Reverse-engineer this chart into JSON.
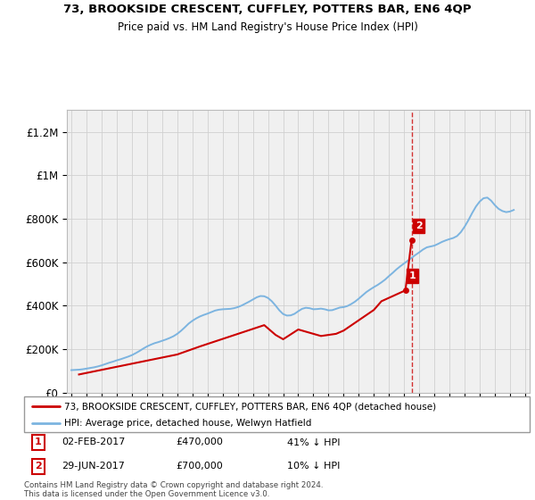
{
  "title": "73, BROOKSIDE CRESCENT, CUFFLEY, POTTERS BAR, EN6 4QP",
  "subtitle": "Price paid vs. HM Land Registry's House Price Index (HPI)",
  "ylim": [
    0,
    1300000
  ],
  "yticks": [
    0,
    200000,
    400000,
    600000,
    800000,
    1000000,
    1200000
  ],
  "ytick_labels": [
    "£0",
    "£200K",
    "£400K",
    "£600K",
    "£800K",
    "£1M",
    "£1.2M"
  ],
  "hpi_color": "#7cb4e0",
  "price_color": "#cc0000",
  "vline_color": "#cc0000",
  "annotation_box_color": "#cc0000",
  "background_color": "#f0f0f0",
  "legend_label_price": "73, BROOKSIDE CRESCENT, CUFFLEY, POTTERS BAR, EN6 4QP (detached house)",
  "legend_label_hpi": "HPI: Average price, detached house, Welwyn Hatfield",
  "transaction1_date": "02-FEB-2017",
  "transaction1_price": "£470,000",
  "transaction1_hpi": "41% ↓ HPI",
  "transaction1_year": 2017.085,
  "transaction1_value": 470000,
  "transaction2_date": "29-JUN-2017",
  "transaction2_price": "£700,000",
  "transaction2_hpi": "10% ↓ HPI",
  "transaction2_year": 2017.49,
  "transaction2_value": 700000,
  "footer_line1": "Contains HM Land Registry data © Crown copyright and database right 2024.",
  "footer_line2": "This data is licensed under the Open Government Licence v3.0.",
  "hpi_years": [
    1995.0,
    1995.25,
    1995.5,
    1995.75,
    1996.0,
    1996.25,
    1996.5,
    1996.75,
    1997.0,
    1997.25,
    1997.5,
    1997.75,
    1998.0,
    1998.25,
    1998.5,
    1998.75,
    1999.0,
    1999.25,
    1999.5,
    1999.75,
    2000.0,
    2000.25,
    2000.5,
    2000.75,
    2001.0,
    2001.25,
    2001.5,
    2001.75,
    2002.0,
    2002.25,
    2002.5,
    2002.75,
    2003.0,
    2003.25,
    2003.5,
    2003.75,
    2004.0,
    2004.25,
    2004.5,
    2004.75,
    2005.0,
    2005.25,
    2005.5,
    2005.75,
    2006.0,
    2006.25,
    2006.5,
    2006.75,
    2007.0,
    2007.25,
    2007.5,
    2007.75,
    2008.0,
    2008.25,
    2008.5,
    2008.75,
    2009.0,
    2009.25,
    2009.5,
    2009.75,
    2010.0,
    2010.25,
    2010.5,
    2010.75,
    2011.0,
    2011.25,
    2011.5,
    2011.75,
    2012.0,
    2012.25,
    2012.5,
    2012.75,
    2013.0,
    2013.25,
    2013.5,
    2013.75,
    2014.0,
    2014.25,
    2014.5,
    2014.75,
    2015.0,
    2015.25,
    2015.5,
    2015.75,
    2016.0,
    2016.25,
    2016.5,
    2016.75,
    2017.0,
    2017.25,
    2017.5,
    2017.75,
    2018.0,
    2018.25,
    2018.5,
    2018.75,
    2019.0,
    2019.25,
    2019.5,
    2019.75,
    2020.0,
    2020.25,
    2020.5,
    2020.75,
    2021.0,
    2021.25,
    2021.5,
    2021.75,
    2022.0,
    2022.25,
    2022.5,
    2022.75,
    2023.0,
    2023.25,
    2023.5,
    2023.75,
    2024.0,
    2024.25
  ],
  "hpi_values": [
    103000,
    104000,
    105000,
    107000,
    110000,
    113000,
    116000,
    120000,
    125000,
    131000,
    137000,
    142000,
    148000,
    153000,
    159000,
    165000,
    172000,
    181000,
    191000,
    202000,
    212000,
    220000,
    227000,
    232000,
    238000,
    244000,
    251000,
    259000,
    270000,
    284000,
    300000,
    317000,
    330000,
    341000,
    350000,
    357000,
    363000,
    370000,
    377000,
    381000,
    383000,
    384000,
    385000,
    388000,
    393000,
    400000,
    409000,
    418000,
    428000,
    438000,
    444000,
    443000,
    435000,
    420000,
    400000,
    378000,
    361000,
    354000,
    355000,
    362000,
    374000,
    385000,
    390000,
    388000,
    383000,
    384000,
    386000,
    383000,
    378000,
    379000,
    385000,
    391000,
    393000,
    398000,
    407000,
    418000,
    432000,
    447000,
    462000,
    474000,
    485000,
    495000,
    507000,
    520000,
    536000,
    551000,
    567000,
    581000,
    594000,
    607000,
    620000,
    633000,
    645000,
    658000,
    668000,
    672000,
    676000,
    684000,
    693000,
    700000,
    706000,
    711000,
    720000,
    738000,
    763000,
    793000,
    826000,
    856000,
    879000,
    894000,
    897000,
    883000,
    862000,
    845000,
    835000,
    830000,
    833000,
    840000
  ],
  "price_years": [
    1995.5,
    2002.0,
    2003.5,
    2007.75,
    2008.5,
    2009.0,
    2010.0,
    2011.5,
    2012.5,
    2013.0,
    2015.0,
    2015.5,
    2017.085,
    2017.49
  ],
  "price_values": [
    83000,
    175000,
    212000,
    310000,
    265000,
    245000,
    290000,
    260000,
    270000,
    285000,
    380000,
    420000,
    470000,
    700000
  ]
}
